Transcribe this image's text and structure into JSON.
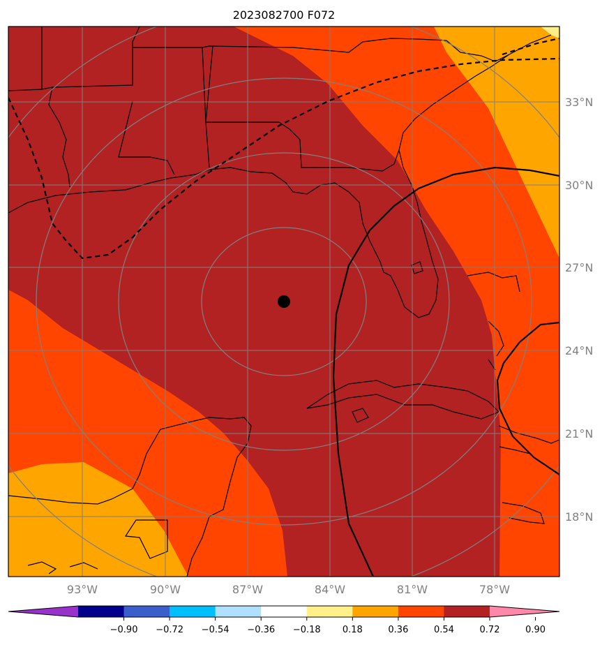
{
  "title": "2023082700 F072",
  "map": {
    "lat_labels": [
      "33°N",
      "30°N",
      "27°N",
      "24°N",
      "21°N",
      "18°N"
    ],
    "lon_labels": [
      "93°W",
      "90°W",
      "87°W",
      "84°W",
      "81°W",
      "78°W"
    ],
    "fill_colors": {
      "level_0_90_plus": "#b22222",
      "level_0_72": "#ff4500",
      "level_0_54": "#ffa500",
      "level_0_36": "#ffee88",
      "coastline": "#000000",
      "gridline": "#808080",
      "center_marker": "#000000"
    }
  },
  "colorbar": {
    "tick_labels": [
      "−0.90",
      "−0.72",
      "−0.54",
      "−0.36",
      "−0.18",
      "0.18",
      "0.36",
      "0.54",
      "0.72",
      "0.90"
    ],
    "colors": [
      "#9932cc",
      "#00008b",
      "#3a5fcd",
      "#00bfff",
      "#b0e0ff",
      "#ffffff",
      "#fff08a",
      "#ffa500",
      "#ff4500",
      "#b22222",
      "#ff88aa"
    ]
  }
}
